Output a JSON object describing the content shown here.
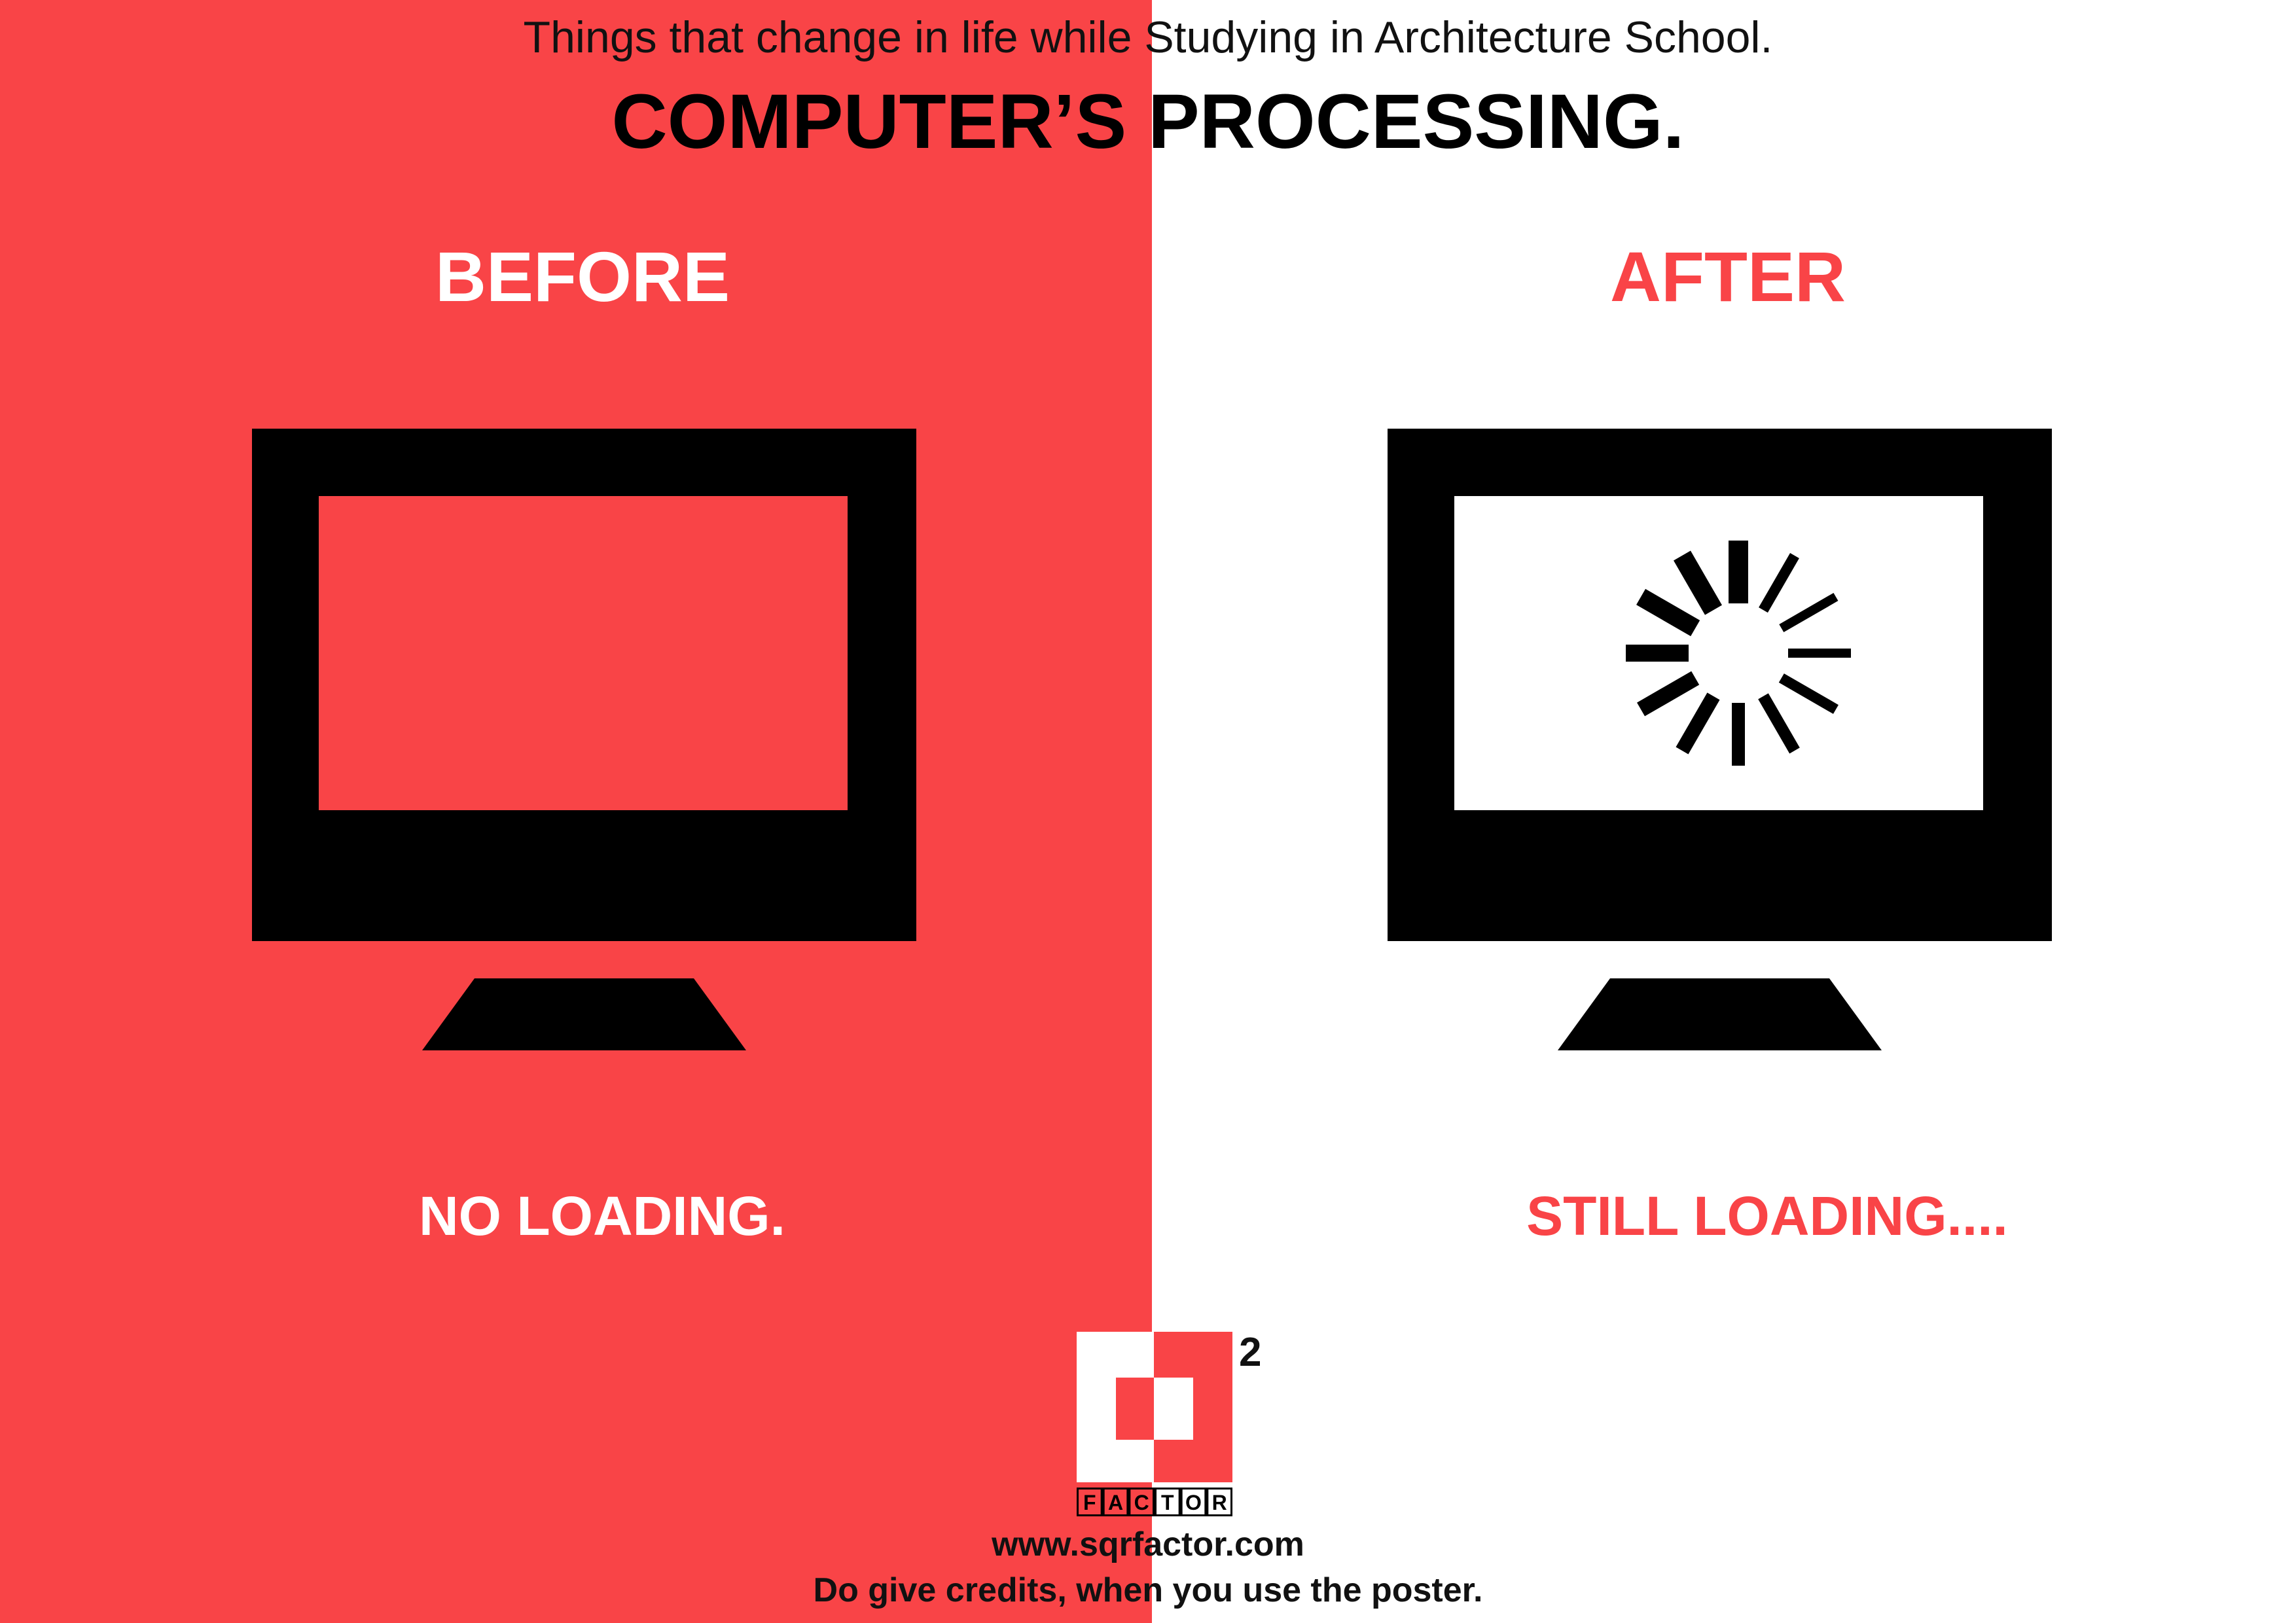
{
  "header": {
    "subtitle": "Things that change in life while Studying in Architecture School.",
    "title": "COMPUTER’S PROCESSING."
  },
  "before": {
    "label": "BEFORE",
    "caption": "NO LOADING."
  },
  "after": {
    "label": "AFTER",
    "caption": "STILL LOADING...."
  },
  "logo": {
    "word": "FACTOR",
    "superscript": "2",
    "icon": "sqrfactor-logo-icon"
  },
  "footer": {
    "url": "www.sqrfactor.com",
    "credit": "Do give credits, when you use the poster."
  },
  "colors": {
    "accent": "#f94447",
    "dark": "#000000",
    "light": "#ffffff"
  },
  "icons": {
    "monitor": "monitor-icon",
    "spinner": "loading-spinner-icon"
  }
}
